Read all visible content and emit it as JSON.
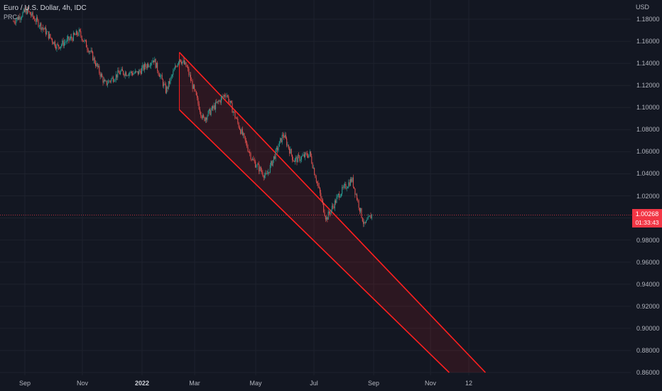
{
  "header": {
    "symbol_line": "Euro / U.S. Dollar, 4h, IDC",
    "indicator": "PRC"
  },
  "price_axis": {
    "currency": "USD",
    "ticks": [
      "1.18000",
      "1.16000",
      "1.14000",
      "1.12000",
      "1.10000",
      "1.08000",
      "1.06000",
      "1.04000",
      "1.02000",
      "1.00000",
      "0.98000",
      "0.96000",
      "0.94000",
      "0.92000",
      "0.90000",
      "0.88000",
      "0.86000"
    ]
  },
  "time_axis": {
    "ticks": [
      {
        "label": "Sep",
        "bold": false
      },
      {
        "label": "Nov",
        "bold": false
      },
      {
        "label": "2022",
        "bold": true
      },
      {
        "label": "Mar",
        "bold": false
      },
      {
        "label": "May",
        "bold": false
      },
      {
        "label": "Jul",
        "bold": false
      },
      {
        "label": "Sep",
        "bold": false
      },
      {
        "label": "Nov",
        "bold": false
      },
      {
        "label": "12",
        "bold": false
      }
    ]
  },
  "last_price": {
    "value": "1.00268",
    "countdown": "01:33:43"
  },
  "colors": {
    "background": "#131722",
    "grid": "#1e222d",
    "up": "#26a69a",
    "down": "#ef5350",
    "channel": "#ff1f1f",
    "price_line": "#f23645"
  },
  "chart_data": {
    "type": "candlestick",
    "title": "Euro / U.S. Dollar, 4h, IDC",
    "ylabel": "USD",
    "ylim": [
      0.855,
      1.19
    ],
    "close_path": [
      [
        "2021-08-20",
        1.178
      ],
      [
        "2021-09-03",
        1.188
      ],
      [
        "2021-09-20",
        1.172
      ],
      [
        "2021-10-05",
        1.155
      ],
      [
        "2021-10-20",
        1.163
      ],
      [
        "2021-10-28",
        1.168
      ],
      [
        "2021-11-10",
        1.148
      ],
      [
        "2021-11-24",
        1.121
      ],
      [
        "2021-12-10",
        1.132
      ],
      [
        "2021-12-28",
        1.131
      ],
      [
        "2022-01-14",
        1.144
      ],
      [
        "2022-01-27",
        1.115
      ],
      [
        "2022-02-10",
        1.145
      ],
      [
        "2022-02-18",
        1.136
      ],
      [
        "2022-03-07",
        1.089
      ],
      [
        "2022-03-31",
        1.113
      ],
      [
        "2022-04-15",
        1.08
      ],
      [
        "2022-04-28",
        1.052
      ],
      [
        "2022-05-12",
        1.037
      ],
      [
        "2022-05-30",
        1.076
      ],
      [
        "2022-06-10",
        1.052
      ],
      [
        "2022-06-27",
        1.058
      ],
      [
        "2022-07-14",
        0.999
      ],
      [
        "2022-07-28",
        1.022
      ],
      [
        "2022-08-10",
        1.035
      ],
      [
        "2022-08-23",
        0.993
      ],
      [
        "2022-08-31",
        1.003
      ]
    ],
    "channel": {
      "upper": [
        [
          "2022-02-10",
          1.15
        ],
        [
          "2022-12-28",
          0.86
        ]
      ],
      "lower": [
        [
          "2022-02-10",
          1.098
        ],
        [
          "2022-11-20",
          0.86
        ]
      ]
    },
    "last_price": 1.00268
  }
}
